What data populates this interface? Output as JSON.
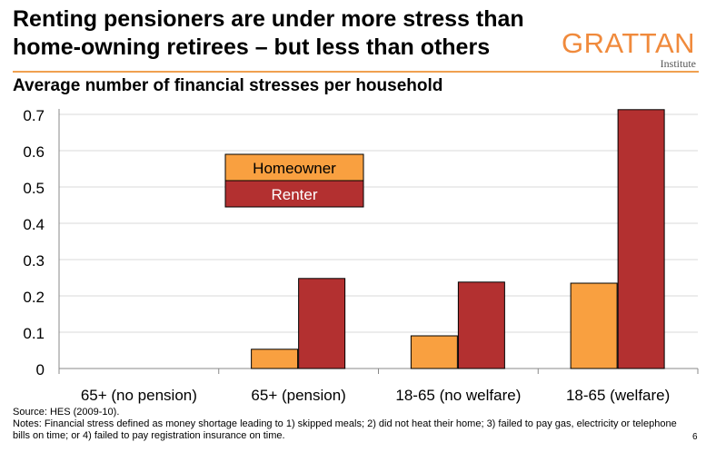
{
  "headline": "Renting pensioners are under more stress than home-owning retirees – but less than others",
  "logo": {
    "word": "GRATTAN",
    "sub": "Institute"
  },
  "page_number": "6",
  "footnotes": {
    "source": "Source: HES (2009-10).",
    "notes": "Notes: Financial stress defined as money shortage leading to 1) skipped meals; 2) did not heat their home; 3) failed to pay gas, electricity or telephone bills on time; or 4) failed to pay registration insurance on time."
  },
  "colors": {
    "homeowner": "#f9a040",
    "renter": "#b33030",
    "accent_rule": "#f0a050",
    "logo": "#f08a3c"
  },
  "chart_data": {
    "type": "bar",
    "title": "Average number of financial stresses per household",
    "xlabel": "",
    "ylabel": "",
    "categories": [
      "65+ (no pension)",
      "65+ (pension)",
      "18-65 (no welfare)",
      "18-65 (welfare)"
    ],
    "series": [
      {
        "name": "Homeowner",
        "values": [
          0,
          0.053,
          0.09,
          0.235
        ]
      },
      {
        "name": "Renter",
        "values": [
          0,
          0.248,
          0.238,
          0.713
        ]
      }
    ],
    "ylim": [
      0,
      0.7
    ],
    "yticks": [
      "0",
      "0.1",
      "0.2",
      "0.3",
      "0.4",
      "0.5",
      "0.6",
      "0.7"
    ],
    "grid": true,
    "legend_position": "upper-left inside plot"
  }
}
